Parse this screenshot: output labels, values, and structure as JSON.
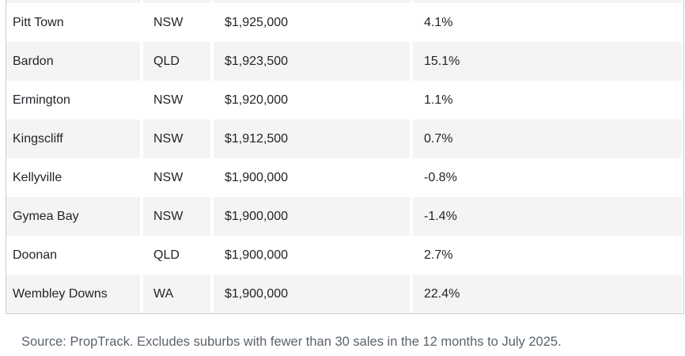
{
  "chart_data": {
    "type": "table",
    "headers_visible": false,
    "rows": [
      {
        "suburb": "Pitt Town",
        "state": "NSW",
        "price": "$1,925,000",
        "change": "4.1%"
      },
      {
        "suburb": "Bardon",
        "state": "QLD",
        "price": "$1,923,500",
        "change": "15.1%"
      },
      {
        "suburb": "Ermington",
        "state": "NSW",
        "price": "$1,920,000",
        "change": "1.1%"
      },
      {
        "suburb": "Kingscliff",
        "state": "NSW",
        "price": "$1,912,500",
        "change": "0.7%"
      },
      {
        "suburb": "Kellyville",
        "state": "NSW",
        "price": "$1,900,000",
        "change": "-0.8%"
      },
      {
        "suburb": "Gymea Bay",
        "state": "NSW",
        "price": "$1,900,000",
        "change": "-1.4%"
      },
      {
        "suburb": "Doonan",
        "state": "QLD",
        "price": "$1,900,000",
        "change": "2.7%"
      },
      {
        "suburb": "Wembley Downs",
        "state": "WA",
        "price": "$1,900,000",
        "change": "22.4%"
      }
    ]
  },
  "source_note": "Source: PropTrack. Excludes suburbs with fewer than 30 sales in the 12 months to July 2025.",
  "colors": {
    "row_stripe": "#f4f4f4",
    "table_border": "#cbcbcb",
    "cell_text": "#212529",
    "source_text": "#5a636c"
  }
}
